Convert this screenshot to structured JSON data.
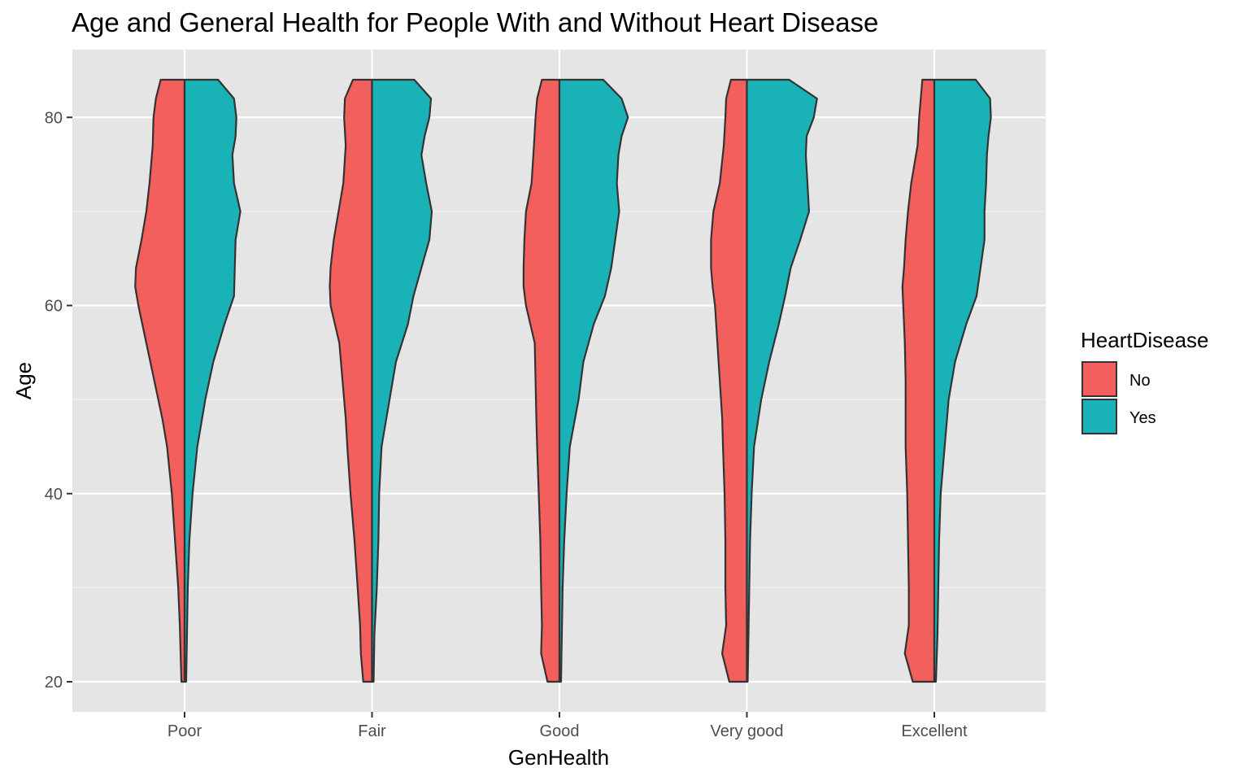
{
  "chart_data": {
    "type": "violin",
    "split": true,
    "title": "Age and General Health for People With and Without Heart Disease",
    "xlabel": "GenHealth",
    "ylabel": "Age",
    "categories": [
      "Poor",
      "Fair",
      "Good",
      "Very good",
      "Excellent"
    ],
    "ylim": [
      16.8,
      87.2
    ],
    "y_ticks": [
      20,
      40,
      60,
      80
    ],
    "y_tick_labels": [
      "20",
      "40",
      "60",
      "80"
    ],
    "grid": true,
    "panel_background": "#e5e5e5",
    "legend": {
      "title": "HeartDisease",
      "position": "right",
      "entries": [
        {
          "label": "No",
          "color": "#f25f5c"
        },
        {
          "label": "Yes",
          "color": "#19b2b6"
        }
      ]
    },
    "series": [
      {
        "name": "No",
        "color": "#f25f5c",
        "side": "left",
        "age_grid": [
          20,
          23,
          26,
          30,
          35,
          40,
          45,
          48,
          52,
          56,
          60,
          62,
          64,
          67,
          70,
          73,
          77,
          80,
          82,
          84
        ],
        "relative_width": {
          "Poor": [
            0.04,
            0.05,
            0.06,
            0.08,
            0.12,
            0.16,
            0.22,
            0.28,
            0.38,
            0.48,
            0.58,
            0.62,
            0.61,
            0.54,
            0.48,
            0.44,
            0.4,
            0.39,
            0.36,
            0.3
          ],
          "Fair": [
            0.11,
            0.14,
            0.15,
            0.18,
            0.22,
            0.27,
            0.31,
            0.33,
            0.37,
            0.41,
            0.52,
            0.53,
            0.52,
            0.48,
            0.42,
            0.36,
            0.33,
            0.35,
            0.34,
            0.24
          ],
          "Good": [
            0.15,
            0.23,
            0.22,
            0.23,
            0.24,
            0.26,
            0.28,
            0.29,
            0.3,
            0.31,
            0.42,
            0.45,
            0.45,
            0.44,
            0.42,
            0.35,
            0.32,
            0.3,
            0.28,
            0.22
          ],
          "Very good": [
            0.22,
            0.31,
            0.26,
            0.27,
            0.27,
            0.28,
            0.3,
            0.31,
            0.34,
            0.37,
            0.4,
            0.43,
            0.45,
            0.45,
            0.42,
            0.34,
            0.29,
            0.27,
            0.26,
            0.2
          ],
          "Excellent": [
            0.27,
            0.37,
            0.32,
            0.32,
            0.33,
            0.34,
            0.36,
            0.36,
            0.36,
            0.37,
            0.39,
            0.4,
            0.38,
            0.36,
            0.33,
            0.29,
            0.21,
            0.19,
            0.17,
            0.15
          ]
        }
      },
      {
        "name": "Yes",
        "color": "#19b2b6",
        "side": "right",
        "age_grid": [
          20,
          25,
          30,
          35,
          40,
          45,
          50,
          54,
          58,
          61,
          64,
          67,
          70,
          73,
          76,
          78,
          80,
          82,
          84
        ],
        "relative_width": {
          "Poor": [
            0.02,
            0.03,
            0.04,
            0.06,
            0.1,
            0.16,
            0.26,
            0.36,
            0.5,
            0.62,
            0.63,
            0.64,
            0.7,
            0.62,
            0.6,
            0.64,
            0.65,
            0.62,
            0.42
          ],
          "Fair": [
            0.02,
            0.03,
            0.06,
            0.08,
            0.09,
            0.12,
            0.22,
            0.3,
            0.45,
            0.52,
            0.62,
            0.72,
            0.75,
            0.68,
            0.62,
            0.66,
            0.72,
            0.74,
            0.53
          ],
          "Good": [
            0.02,
            0.03,
            0.04,
            0.06,
            0.09,
            0.13,
            0.24,
            0.3,
            0.43,
            0.57,
            0.65,
            0.7,
            0.75,
            0.72,
            0.74,
            0.78,
            0.86,
            0.78,
            0.55
          ],
          "Very good": [
            0.01,
            0.02,
            0.03,
            0.04,
            0.06,
            0.09,
            0.18,
            0.28,
            0.4,
            0.48,
            0.55,
            0.67,
            0.78,
            0.76,
            0.74,
            0.75,
            0.84,
            0.88,
            0.53
          ],
          "Excellent": [
            0.02,
            0.04,
            0.05,
            0.06,
            0.08,
            0.13,
            0.18,
            0.26,
            0.4,
            0.53,
            0.58,
            0.63,
            0.63,
            0.65,
            0.66,
            0.68,
            0.71,
            0.7,
            0.52
          ]
        }
      }
    ]
  }
}
